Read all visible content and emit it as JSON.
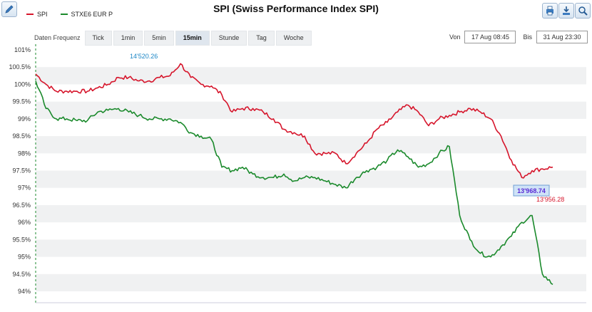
{
  "header": {
    "title": "SPI (Swiss Performance Index SPI)"
  },
  "legend": [
    {
      "name": "SPI",
      "color": "#d6152b"
    },
    {
      "name": "STXE6 EUR P",
      "color": "#1b8a2c"
    }
  ],
  "toolbar": {
    "frequency_label": "Daten Frequenz",
    "frequencies": [
      "Tick",
      "1min",
      "5min",
      "15min",
      "Stunde",
      "Tag",
      "Woche"
    ],
    "active_frequency": "15min",
    "from_label": "Von",
    "from_value": "17 Aug 08:45",
    "to_label": "Bis",
    "to_value": "31 Aug 23:30",
    "icons": [
      "edit-icon",
      "print-icon",
      "download-icon",
      "zoom-icon"
    ]
  },
  "chart_data": {
    "type": "line",
    "title": "SPI (Swiss Performance Index SPI)",
    "xlabel": "",
    "ylabel": "",
    "ylim": [
      93.8,
      101.1
    ],
    "y_ticks": [
      "94%",
      "94.5%",
      "95%",
      "95.5%",
      "96%",
      "96.5%",
      "97%",
      "97.5%",
      "98%",
      "98.5%",
      "99%",
      "99.5%",
      "100%",
      "100.5%",
      "101%"
    ],
    "y_tick_values": [
      94,
      94.5,
      95,
      95.5,
      96,
      96.5,
      97,
      97.5,
      98,
      98.5,
      99,
      99.5,
      100,
      100.5,
      101
    ],
    "x": [
      0,
      2,
      4,
      6,
      8,
      10,
      12,
      14,
      16,
      18,
      20,
      22,
      24,
      26,
      28,
      30,
      32,
      34,
      36,
      38,
      40,
      42,
      44,
      46,
      48,
      50,
      52,
      54,
      56,
      58,
      60,
      62,
      64,
      66,
      68,
      70,
      72,
      74,
      76,
      78,
      80,
      82,
      84,
      86,
      88,
      90,
      92,
      94,
      96,
      98,
      100
    ],
    "series": [
      {
        "name": "SPI",
        "color": "#d6152b",
        "values": [
          100.3,
          100.0,
          99.8,
          99.8,
          99.8,
          99.8,
          99.9,
          100.0,
          100.2,
          100.2,
          100.1,
          100.1,
          100.2,
          100.25,
          100.6,
          100.2,
          100.0,
          99.95,
          99.7,
          99.2,
          99.3,
          99.3,
          99.2,
          99.0,
          98.7,
          98.6,
          98.5,
          98.0,
          98.0,
          98.0,
          97.7,
          98.0,
          98.3,
          98.7,
          98.9,
          99.2,
          99.4,
          99.2,
          98.8,
          99.0,
          99.1,
          99.2,
          99.3,
          99.2,
          99.0,
          98.5,
          97.8,
          97.3,
          97.5,
          97.55,
          97.6
        ],
        "end_label": "13'956.28"
      },
      {
        "name": "STXE6 EUR P",
        "color": "#1b8a2c",
        "values": [
          100.1,
          99.3,
          99.0,
          99.0,
          98.95,
          98.95,
          99.2,
          99.25,
          99.3,
          99.2,
          99.1,
          99.0,
          99.0,
          99.0,
          98.9,
          98.6,
          98.5,
          98.4,
          97.6,
          97.5,
          97.6,
          97.4,
          97.3,
          97.3,
          97.4,
          97.2,
          97.3,
          97.3,
          97.2,
          97.1,
          97.0,
          97.3,
          97.5,
          97.6,
          97.8,
          98.1,
          97.9,
          97.6,
          97.7,
          98.0,
          98.2,
          96.2,
          95.5,
          95.1,
          95.0,
          95.3,
          95.6,
          96.0,
          96.2,
          94.5,
          94.2
        ],
        "end_label": "13'968.74"
      }
    ],
    "annotations": [
      {
        "text": "14'520.26",
        "color": "#1b86c6"
      },
      {
        "text": "13'968.74",
        "color": "#5a2bd6"
      },
      {
        "text": "13'956.28",
        "color": "#d6152b"
      }
    ],
    "grid": true,
    "legend_position": "top-left"
  }
}
